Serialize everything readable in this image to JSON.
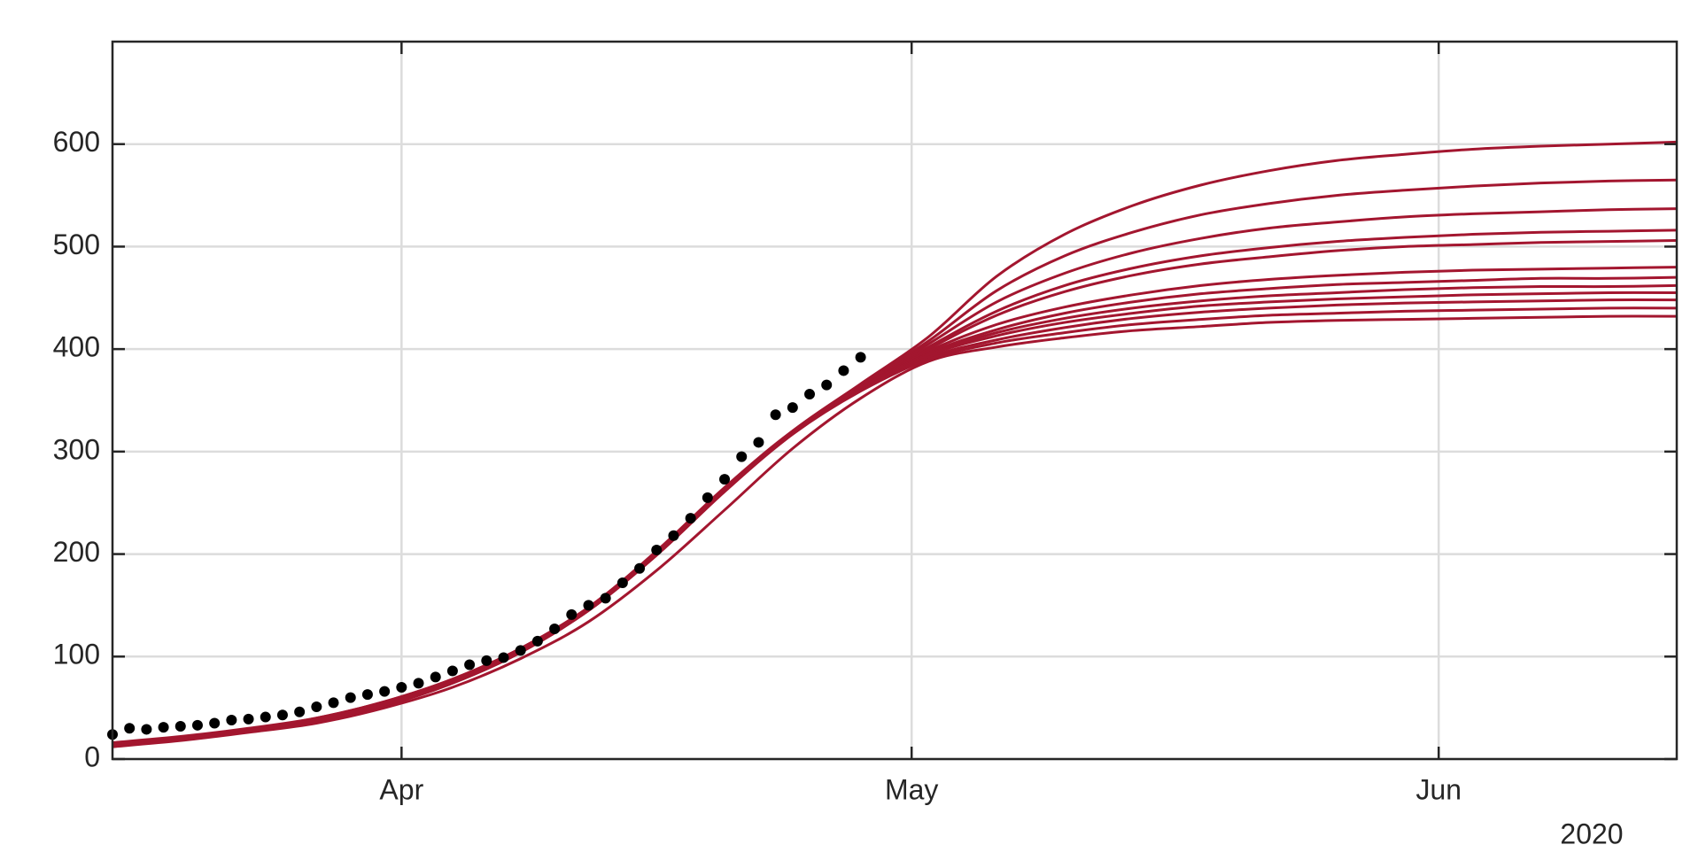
{
  "chart_data": {
    "type": "line",
    "x_axis_year": "2020",
    "xlim": [
      "2020-03-15",
      "2020-06-15"
    ],
    "xticks": [
      {
        "value": "2020-04-01",
        "label": "Apr"
      },
      {
        "value": "2020-05-01",
        "label": "May"
      },
      {
        "value": "2020-06-01",
        "label": "Jun"
      }
    ],
    "ylim": [
      0,
      700
    ],
    "yticks": [
      0,
      100,
      200,
      300,
      400,
      500,
      600
    ],
    "grid": true,
    "line_color": "#a3162f",
    "x": [
      "2020-03-15",
      "2020-03-19",
      "2020-03-23",
      "2020-03-27",
      "2020-03-31",
      "2020-04-04",
      "2020-04-08",
      "2020-04-12",
      "2020-04-16",
      "2020-04-20",
      "2020-04-24",
      "2020-04-28",
      "2020-05-02",
      "2020-05-06",
      "2020-05-10",
      "2020-05-14",
      "2020-05-18",
      "2020-05-22",
      "2020-05-26",
      "2020-05-30",
      "2020-06-03",
      "2020-06-07",
      "2020-06-11",
      "2020-06-15"
    ],
    "series": [
      {
        "values": [
          13,
          19,
          27,
          37,
          52,
          74,
          104,
          145,
          199,
          262,
          320,
          366,
          412,
          471,
          512,
          540,
          560,
          574,
          584,
          590,
          595,
          598,
          600,
          602
        ]
      },
      {
        "values": [
          14,
          20,
          28,
          38,
          53,
          75,
          105,
          146,
          200,
          263,
          320,
          365,
          408,
          457,
          491,
          514,
          531,
          542,
          550,
          555,
          559,
          562,
          564,
          565
        ]
      },
      {
        "values": [
          14,
          20,
          28,
          38,
          54,
          76,
          106,
          147,
          201,
          262,
          319,
          364,
          405,
          446,
          474,
          494,
          508,
          518,
          524,
          529,
          532,
          534,
          536,
          537
        ]
      },
      {
        "values": [
          15,
          21,
          29,
          39,
          55,
          77,
          107,
          147,
          201,
          263,
          319,
          363,
          402,
          437,
          462,
          479,
          491,
          499,
          505,
          509,
          512,
          514,
          515,
          516
        ]
      },
      {
        "values": [
          13,
          19,
          27,
          37,
          53,
          75,
          105,
          145,
          199,
          261,
          318,
          362,
          400,
          433,
          456,
          472,
          483,
          490,
          496,
          500,
          502,
          504,
          505,
          506
        ]
      },
      {
        "values": [
          15,
          21,
          29,
          40,
          56,
          78,
          108,
          148,
          202,
          264,
          319,
          362,
          398,
          424,
          441,
          453,
          462,
          468,
          472,
          475,
          477,
          478,
          479,
          480
        ]
      },
      {
        "values": [
          14,
          20,
          28,
          38,
          54,
          76,
          106,
          146,
          200,
          262,
          318,
          361,
          396,
          419,
          435,
          446,
          454,
          459,
          463,
          465,
          467,
          469,
          469,
          470
        ]
      },
      {
        "values": [
          16,
          22,
          30,
          40,
          56,
          78,
          108,
          148,
          203,
          265,
          320,
          362,
          395,
          416,
          430,
          440,
          447,
          452,
          455,
          458,
          460,
          461,
          461,
          462
        ]
      },
      {
        "values": [
          14,
          20,
          28,
          38,
          54,
          76,
          106,
          146,
          199,
          261,
          317,
          360,
          394,
          413,
          426,
          435,
          442,
          446,
          449,
          451,
          453,
          454,
          455,
          455
        ]
      },
      {
        "values": [
          15,
          21,
          29,
          39,
          55,
          77,
          107,
          147,
          201,
          263,
          318,
          360,
          392,
          409,
          421,
          430,
          436,
          440,
          443,
          445,
          446,
          447,
          448,
          448
        ]
      },
      {
        "values": [
          13,
          19,
          27,
          37,
          53,
          75,
          105,
          145,
          200,
          262,
          317,
          359,
          390,
          406,
          416,
          424,
          429,
          433,
          435,
          437,
          438,
          439,
          440,
          440
        ]
      },
      {
        "values": [
          12,
          18,
          26,
          35,
          50,
          70,
          98,
          134,
          184,
          243,
          303,
          352,
          388,
          402,
          411,
          418,
          422,
          426,
          428,
          429,
          430,
          431,
          432,
          432
        ]
      }
    ],
    "points": {
      "color": "#000000",
      "x": [
        "2020-03-15",
        "2020-03-16",
        "2020-03-17",
        "2020-03-18",
        "2020-03-19",
        "2020-03-20",
        "2020-03-21",
        "2020-03-22",
        "2020-03-23",
        "2020-03-24",
        "2020-03-25",
        "2020-03-26",
        "2020-03-27",
        "2020-03-28",
        "2020-03-29",
        "2020-03-30",
        "2020-03-31",
        "2020-04-01",
        "2020-04-02",
        "2020-04-03",
        "2020-04-04",
        "2020-04-05",
        "2020-04-06",
        "2020-04-07",
        "2020-04-08",
        "2020-04-09",
        "2020-04-10",
        "2020-04-11",
        "2020-04-12",
        "2020-04-13",
        "2020-04-14",
        "2020-04-15",
        "2020-04-16",
        "2020-04-17",
        "2020-04-18",
        "2020-04-19",
        "2020-04-20",
        "2020-04-21",
        "2020-04-22",
        "2020-04-23",
        "2020-04-24",
        "2020-04-25",
        "2020-04-26",
        "2020-04-27",
        "2020-04-28"
      ],
      "values": [
        24,
        30,
        29,
        31,
        32,
        33,
        35,
        38,
        39,
        41,
        43,
        46,
        51,
        55,
        60,
        63,
        66,
        70,
        74,
        80,
        86,
        92,
        96,
        99,
        106,
        115,
        127,
        141,
        150,
        157,
        172,
        186,
        204,
        218,
        235,
        255,
        273,
        295,
        309,
        336,
        343,
        356,
        365,
        379,
        392
      ]
    }
  }
}
